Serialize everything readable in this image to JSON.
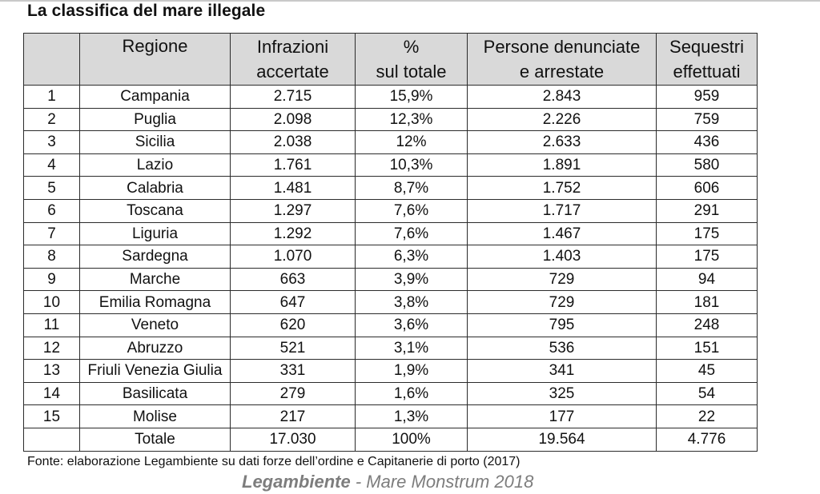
{
  "title": "La classifica del mare illegale",
  "headers": {
    "rank": "",
    "region": "Regione",
    "infractions": [
      "Infrazioni",
      "accertate"
    ],
    "percent": [
      "%",
      "sul totale"
    ],
    "persons": [
      "Persone denunciate",
      "e arrestate"
    ],
    "seizures": [
      "Sequestri",
      "effettuati"
    ]
  },
  "rows": [
    {
      "rank": "1",
      "region": "Campania",
      "infractions": "2.715",
      "percent": "15,9%",
      "persons": "2.843",
      "seizures": "959"
    },
    {
      "rank": "2",
      "region": "Puglia",
      "infractions": "2.098",
      "percent": "12,3%",
      "persons": "2.226",
      "seizures": "759"
    },
    {
      "rank": "3",
      "region": "Sicilia",
      "infractions": "2.038",
      "percent": "12%",
      "persons": "2.633",
      "seizures": "436"
    },
    {
      "rank": "4",
      "region": "Lazio",
      "infractions": "1.761",
      "percent": "10,3%",
      "persons": "1.891",
      "seizures": "580"
    },
    {
      "rank": "5",
      "region": "Calabria",
      "infractions": "1.481",
      "percent": "8,7%",
      "persons": "1.752",
      "seizures": "606"
    },
    {
      "rank": "6",
      "region": "Toscana",
      "infractions": "1.297",
      "percent": "7,6%",
      "persons": "1.717",
      "seizures": "291"
    },
    {
      "rank": "7",
      "region": "Liguria",
      "infractions": "1.292",
      "percent": "7,6%",
      "persons": "1.467",
      "seizures": "175"
    },
    {
      "rank": "8",
      "region": "Sardegna",
      "infractions": "1.070",
      "percent": "6,3%",
      "persons": "1.403",
      "seizures": "175"
    },
    {
      "rank": "9",
      "region": "Marche",
      "infractions": "663",
      "percent": "3,9%",
      "persons": "729",
      "seizures": "94"
    },
    {
      "rank": "10",
      "region": "Emilia Romagna",
      "infractions": "647",
      "percent": "3,8%",
      "persons": "729",
      "seizures": "181"
    },
    {
      "rank": "11",
      "region": "Veneto",
      "infractions": "620",
      "percent": "3,6%",
      "persons": "795",
      "seizures": "248"
    },
    {
      "rank": "12",
      "region": "Abruzzo",
      "infractions": "521",
      "percent": "3,1%",
      "persons": "536",
      "seizures": "151"
    },
    {
      "rank": "13",
      "region": "Friuli Venezia Giulia",
      "infractions": "331",
      "percent": "1,9%",
      "persons": "341",
      "seizures": "45"
    },
    {
      "rank": "14",
      "region": "Basilicata",
      "infractions": "279",
      "percent": "1,6%",
      "persons": "325",
      "seizures": "54"
    },
    {
      "rank": "15",
      "region": "Molise",
      "infractions": "217",
      "percent": "1,3%",
      "persons": "177",
      "seizures": "22"
    }
  ],
  "total": {
    "rank": "",
    "region": "Totale",
    "infractions": "17.030",
    "percent": "100%",
    "persons": "19.564",
    "seizures": "4.776"
  },
  "source": "Fonte: elaborazione Legambiente su dati forze dell’ordine e Capitanerie di porto (2017)",
  "brand": {
    "name": "Legambiente",
    "separator": " - ",
    "edition": "Mare Monstrum 2018"
  }
}
